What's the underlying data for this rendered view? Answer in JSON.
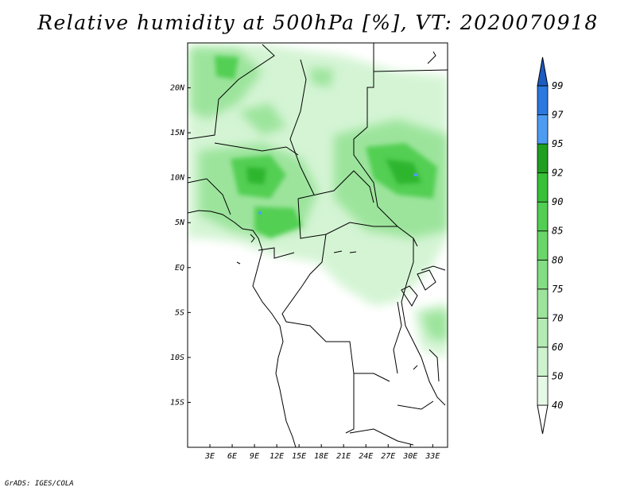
{
  "title": "Relative humidity at 500hPa [%], VT: 2020070918",
  "credit": "GrADS: IGES/COLA",
  "map": {
    "lon_range": [
      0,
      35
    ],
    "lat_range": [
      -20,
      25
    ],
    "x_ticks": [
      {
        "value": 3,
        "label": "3E"
      },
      {
        "value": 6,
        "label": "6E"
      },
      {
        "value": 9,
        "label": "9E"
      },
      {
        "value": 12,
        "label": "12E"
      },
      {
        "value": 15,
        "label": "15E"
      },
      {
        "value": 18,
        "label": "18E"
      },
      {
        "value": 21,
        "label": "21E"
      },
      {
        "value": 24,
        "label": "24E"
      },
      {
        "value": 27,
        "label": "27E"
      },
      {
        "value": 30,
        "label": "30E"
      },
      {
        "value": 33,
        "label": "33E"
      }
    ],
    "y_ticks": [
      {
        "value": 20,
        "label": "20N"
      },
      {
        "value": 15,
        "label": "15N"
      },
      {
        "value": 10,
        "label": "10N"
      },
      {
        "value": 5,
        "label": "5N"
      },
      {
        "value": 0,
        "label": "EQ"
      },
      {
        "value": -5,
        "label": "5S"
      },
      {
        "value": -10,
        "label": "10S"
      },
      {
        "value": -15,
        "label": "15S"
      }
    ]
  },
  "colorbar": {
    "levels": [
      "40",
      "50",
      "60",
      "70",
      "75",
      "80",
      "85",
      "90",
      "92",
      "95",
      "97",
      "99"
    ],
    "colors": [
      "#e6f9e6",
      "#cdf2cd",
      "#b4ebb4",
      "#9ce49c",
      "#83dd83",
      "#6ad66a",
      "#52cf52",
      "#39c039",
      "#1f9e1f",
      "#4e9cf2",
      "#2a78e0",
      "#1c5cc2"
    ]
  }
}
